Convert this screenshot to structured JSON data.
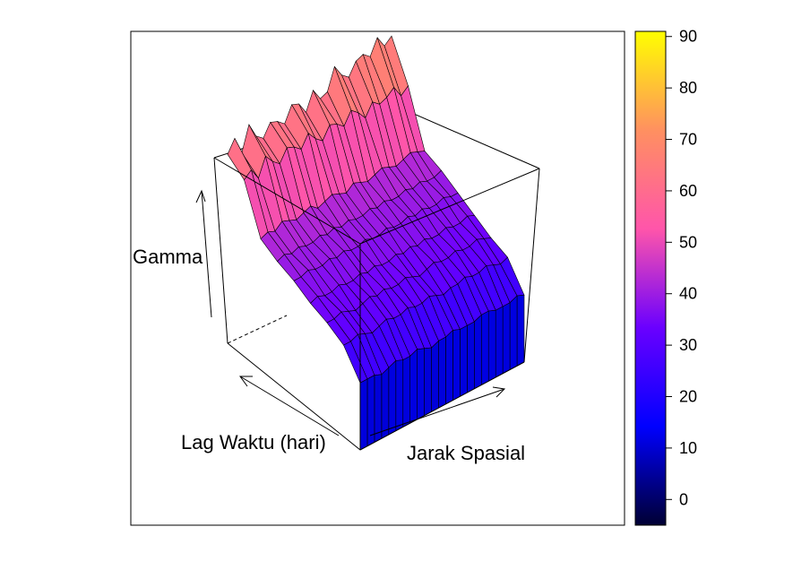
{
  "chart_data": {
    "type": "surface",
    "title": "",
    "xlabel": "Lag Waktu (hari)",
    "ylabel": "Jarak Spasial",
    "zlabel": "Gamma",
    "zlim": [
      0,
      90
    ],
    "colorbar": {
      "ticks": [
        "0",
        "10",
        "20",
        "30",
        "40",
        "50",
        "60",
        "70",
        "80",
        "90"
      ],
      "range": [
        -5,
        91
      ],
      "palette": [
        "#000033",
        "#0000ff",
        "#6a00ff",
        "#ff55aa",
        "#ff9060",
        "#ffff00"
      ]
    },
    "surface": {
      "lag_count": 9,
      "distance_count": 24,
      "lag_levels": [
        22,
        30,
        33,
        35,
        38,
        40,
        43,
        58,
        62
      ],
      "near_distance_level": 28,
      "comment_free_rows": [
        [
          22,
          22,
          22,
          21,
          22,
          23,
          22,
          22,
          23,
          22,
          21,
          22,
          22,
          23,
          22,
          22,
          22,
          23,
          23,
          22,
          22,
          22,
          23,
          22
        ],
        [
          30,
          30,
          31,
          30,
          29,
          30,
          31,
          30,
          30,
          31,
          30,
          30,
          31,
          30,
          29,
          30,
          30,
          31,
          30,
          30,
          31,
          30,
          29,
          30
        ],
        [
          33,
          33,
          34,
          33,
          32,
          33,
          34,
          33,
          34,
          33,
          33,
          34,
          33,
          32,
          33,
          34,
          33,
          33,
          34,
          33,
          33,
          34,
          33,
          32
        ],
        [
          35,
          36,
          35,
          35,
          36,
          35,
          35,
          36,
          35,
          36,
          35,
          35,
          36,
          35,
          36,
          35,
          36,
          35,
          35,
          36,
          35,
          35,
          36,
          35
        ],
        [
          38,
          38,
          39,
          38,
          38,
          39,
          38,
          39,
          38,
          38,
          39,
          38,
          38,
          39,
          38,
          38,
          39,
          38,
          39,
          38,
          38,
          39,
          38,
          38
        ],
        [
          40,
          41,
          40,
          41,
          40,
          40,
          41,
          40,
          41,
          40,
          41,
          40,
          40,
          41,
          40,
          41,
          40,
          40,
          41,
          40,
          41,
          40,
          40,
          41
        ],
        [
          43,
          44,
          43,
          45,
          44,
          43,
          44,
          45,
          43,
          44,
          45,
          44,
          43,
          45,
          44,
          43,
          44,
          45,
          44,
          43,
          44,
          45,
          44,
          43
        ],
        [
          58,
          60,
          56,
          62,
          59,
          57,
          61,
          60,
          58,
          62,
          59,
          57,
          61,
          60,
          58,
          62,
          60,
          57,
          61,
          59,
          60,
          62,
          58,
          60
        ],
        [
          62,
          66,
          60,
          68,
          63,
          61,
          65,
          64,
          62,
          67,
          66,
          62,
          68,
          64,
          65,
          72,
          68,
          66,
          70,
          71,
          69,
          74,
          70,
          72
        ]
      ]
    }
  }
}
